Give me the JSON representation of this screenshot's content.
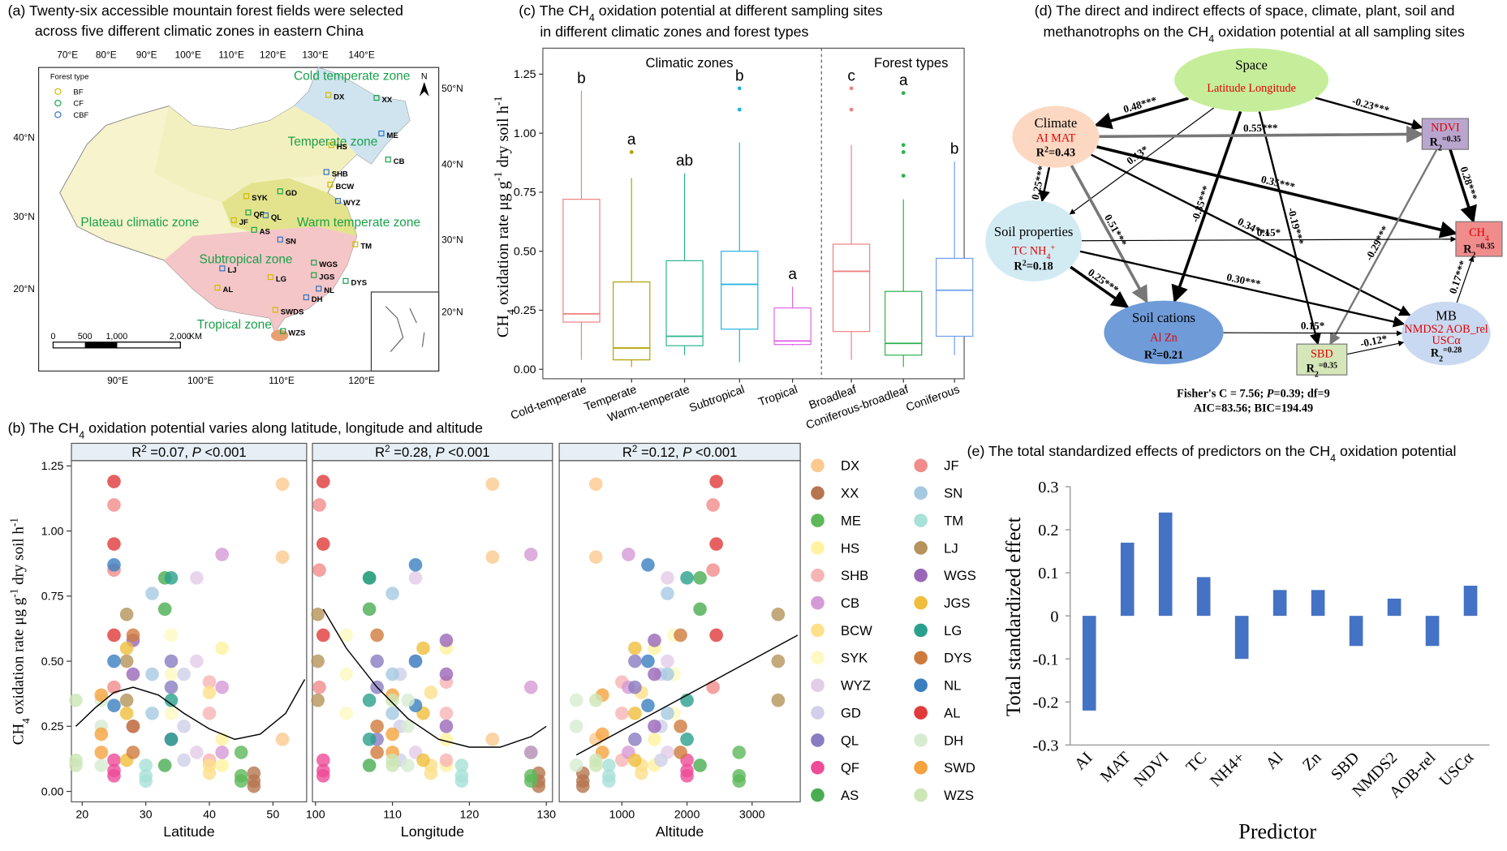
{
  "map": {
    "title": [
      "(a) Twenty-six accessible mountain forest fields were selected",
      "across five different climatic zones in eastern China"
    ],
    "lon_top": [
      "70°E",
      "80°E",
      "90°E",
      "100°E",
      "110°E",
      "120°E",
      "130°E",
      "140°E"
    ],
    "lon_bottom": [
      "90°E",
      "100°E",
      "110°E",
      "120°E"
    ],
    "lat_left": [
      "40°N",
      "30°N",
      "20°N"
    ],
    "lat_right": [
      "50°N",
      "40°N",
      "30°N",
      "20°N"
    ],
    "zones": [
      "Cold temperate zone",
      "Temperate zone",
      "Warm temperate zone",
      "Plateau climatic zone",
      "Subtropical zone",
      "Tropical zone"
    ],
    "sites": [
      "DX",
      "XX",
      "ME",
      "HS",
      "CB",
      "SHB",
      "BCW",
      "GD",
      "WYZ",
      "SYK",
      "QF",
      "QL",
      "JF",
      "AS",
      "SN",
      "TM",
      "WGS",
      "LJ",
      "LG",
      "JGS",
      "NL",
      "AL",
      "DYS",
      "DH",
      "SWDS",
      "WZS"
    ],
    "legend": {
      "title": "Forest type",
      "items": [
        "BF",
        "CF",
        "CBF"
      ]
    },
    "scale": [
      "0",
      "500",
      "1,000",
      "2,000",
      "KM"
    ],
    "north": "N"
  },
  "path_diagram": {
    "title": [
      "(d) The direct and indirect effects of space, climate, plant, soil and",
      "methanotrophs on the CH",
      "4",
      " oxidation potential at all sampling sites"
    ],
    "nodes": [
      {
        "lines": [
          [
            "Space"
          ],
          [
            "Latitude Longitude"
          ]
        ]
      },
      {
        "lines": [
          [
            "Climate"
          ],
          [
            "AI  MAT"
          ],
          [
            "R",
            "2",
            "=0.43"
          ]
        ]
      },
      {
        "lines": [
          [
            "NDVI"
          ],
          [
            "R",
            "2",
            "=0.35"
          ]
        ]
      },
      {
        "lines": [
          [
            "Soil properties"
          ],
          [
            "TC NH",
            "4",
            "+"
          ],
          [
            "R",
            "2",
            "=0.18"
          ]
        ]
      },
      {
        "lines": [
          [
            "CH",
            "4"
          ],
          [
            "R",
            "2",
            "=0.35"
          ]
        ]
      },
      {
        "lines": [
          [
            "Soil cations"
          ],
          [
            "Al   Zn"
          ],
          [
            "R",
            "2",
            "=0.21"
          ]
        ]
      },
      {
        "lines": [
          [
            "SBD"
          ],
          [
            "R",
            "2",
            "=0.35"
          ]
        ]
      },
      {
        "lines": [
          [
            "MB"
          ],
          [
            "NMDS2   AOB_rel"
          ],
          [
            "USCα"
          ],
          [
            "R",
            "2",
            "=0.28"
          ]
        ]
      }
    ],
    "edges": [
      "0.48***",
      "-0.23***",
      "-0.35***",
      "-0.19***",
      "0.13*",
      "0.55***",
      "0.25***",
      "0.51***",
      "0.35***",
      "0.34***",
      "0.28***",
      "-0.29***",
      "0.15*",
      "0.25***",
      "0.30***",
      "0.15*",
      "-0.12*",
      "0.17***"
    ],
    "fit": [
      [
        "Fisher's C = 7.56; ",
        "P",
        "=0.39; df=9"
      ],
      [
        "AIC=83.56; BIC=194.49"
      ]
    ]
  },
  "chart_data": [
    {
      "type": "scatter",
      "title": [
        "(b) The CH",
        "4",
        " oxidation potential varies along latitude, longitude and altitude"
      ],
      "y_label": [
        "CH",
        "4",
        " oxidation rate μg g",
        "-1",
        " dry soil h",
        "-1"
      ],
      "ylim": [
        -0.04,
        1.27
      ],
      "yticks": [
        {
          "value": 0,
          "label": "0.00"
        },
        {
          "value": 0.25,
          "label": "0.25"
        },
        {
          "value": 0.5,
          "label": "0.50"
        },
        {
          "value": 0.75,
          "label": "0.75"
        },
        {
          "value": 1,
          "label": "1.00"
        },
        {
          "value": 1.25,
          "label": "1.25"
        }
      ],
      "facets": [
        {
          "strip": [
            "R",
            "2",
            " =0.07, ",
            "P",
            " <0.001"
          ],
          "x_label": "Latitude",
          "xlim": [
            18.3,
            55.3
          ],
          "xticks": [
            20,
            30,
            40,
            50
          ],
          "trend": {
            "x": [
              19,
              22,
              25,
              28,
              32,
              36,
              40,
              44,
              48,
              52,
              55
            ],
            "values": [
              0.25,
              0.32,
              0.38,
              0.4,
              0.37,
              0.3,
              0.24,
              0.2,
              0.22,
              0.3,
              0.43
            ]
          }
        },
        {
          "strip": [
            "R",
            "2",
            " =0.28, ",
            "P",
            " <0.001"
          ],
          "x_label": "Longitude",
          "xlim": [
            99.6,
            130.8
          ],
          "xticks": [
            100,
            110,
            120,
            130
          ],
          "trend": {
            "x": [
              101,
              104,
              108,
              112,
              116,
              120,
              124,
              128,
              130
            ],
            "values": [
              0.7,
              0.55,
              0.4,
              0.28,
              0.2,
              0.17,
              0.17,
              0.21,
              0.25
            ]
          }
        },
        {
          "strip": [
            "R",
            "2",
            " =0.12, ",
            "P",
            " <0.001"
          ],
          "x_label": "Altitude",
          "xlim": [
            37,
            3740
          ],
          "xticks": [
            1000,
            2000,
            3000
          ],
          "trend": {
            "x": [
              300,
              3700
            ],
            "values": [
              0.14,
              0.6
            ]
          }
        }
      ],
      "series": [
        {
          "name": "DX",
          "color": "#fbc98f",
          "site_x": [
            51.5,
            123,
            600
          ],
          "values": [
            1.18,
            0.9,
            0.2
          ]
        },
        {
          "name": "XX",
          "color": "#b5754f",
          "site_x": [
            47,
            129,
            400
          ],
          "values": [
            0.07,
            0.04,
            0.02
          ]
        },
        {
          "name": "ME",
          "color": "#5db85a",
          "site_x": [
            45,
            128,
            2800
          ],
          "values": [
            0.06,
            0.04,
            0.15
          ]
        },
        {
          "name": "HS",
          "color": "#fff3a0",
          "site_x": [
            42,
            117,
            1500
          ],
          "values": [
            0.55,
            0.2,
            0.1
          ]
        },
        {
          "name": "SHB",
          "color": "#f7b4b4",
          "site_x": [
            40,
            117,
            1000
          ],
          "values": [
            0.42,
            0.3,
            0.12
          ]
        },
        {
          "name": "CB",
          "color": "#d49ad6",
          "site_x": [
            42,
            128,
            1100
          ],
          "values": [
            0.91,
            0.4,
            0.15
          ]
        },
        {
          "name": "BCW",
          "color": "#fde08a",
          "site_x": [
            40,
            115,
            1300
          ],
          "values": [
            0.38,
            0.1,
            0.07
          ]
        },
        {
          "name": "SYK",
          "color": "#fdf9c2",
          "site_x": [
            34,
            104,
            1800
          ],
          "values": [
            0.6,
            0.45,
            0.3
          ]
        },
        {
          "name": "WYZ",
          "color": "#e3cce8",
          "site_x": [
            38,
            113,
            1700
          ],
          "values": [
            0.82,
            0.5,
            0.15
          ]
        },
        {
          "name": "GD",
          "color": "#d0d0ea",
          "site_x": [
            36,
            111,
            1600
          ],
          "values": [
            0.45,
            0.25,
            0.12
          ]
        },
        {
          "name": "QL",
          "color": "#8a7cc0",
          "site_x": [
            34,
            108,
            1200
          ],
          "values": [
            0.5,
            0.4,
            0.2
          ]
        },
        {
          "name": "QF",
          "color": "#ee4b98",
          "site_x": [
            25,
            101,
            2000
          ],
          "values": [
            0.12,
            0.08,
            0.06
          ]
        },
        {
          "name": "AS",
          "color": "#4aad52",
          "site_x": [
            33,
            107,
            2200
          ],
          "values": [
            0.82,
            0.7,
            0.1
          ]
        },
        {
          "name": "JF",
          "color": "#f28b8b",
          "site_x": [
            25,
            100.5,
            2400
          ],
          "values": [
            1.1,
            0.85,
            0.4
          ]
        },
        {
          "name": "SN",
          "color": "#a6c9e2",
          "site_x": [
            31,
            110,
            1700
          ],
          "values": [
            0.76,
            0.45,
            0.3
          ]
        },
        {
          "name": "TM",
          "color": "#a7e1d8",
          "site_x": [
            30,
            119,
            800
          ],
          "values": [
            0.1,
            0.06,
            0.04
          ]
        },
        {
          "name": "LJ",
          "color": "#b5935a",
          "site_x": [
            27,
            100.3,
            3400
          ],
          "values": [
            0.68,
            0.5,
            0.35
          ]
        },
        {
          "name": "WGS",
          "color": "#9a67b8",
          "site_x": [
            28,
            117,
            1500
          ],
          "values": [
            0.58,
            0.45,
            0.25
          ]
        },
        {
          "name": "JGS",
          "color": "#efbe3c",
          "site_x": [
            27,
            114,
            1200
          ],
          "values": [
            0.55,
            0.3,
            0.12
          ]
        },
        {
          "name": "LG",
          "color": "#2aa08c",
          "site_x": [
            34,
            107,
            2000
          ],
          "values": [
            0.82,
            0.35,
            0.2
          ]
        },
        {
          "name": "DYS",
          "color": "#cf7a3d",
          "site_x": [
            28,
            108,
            1900
          ],
          "values": [
            0.6,
            0.25,
            0.15
          ]
        },
        {
          "name": "NL",
          "color": "#3a7fc0",
          "site_x": [
            25,
            113,
            1400
          ],
          "values": [
            0.87,
            0.5,
            0.33
          ]
        },
        {
          "name": "AL",
          "color": "#e03a3a",
          "site_x": [
            25,
            101,
            2450
          ],
          "values": [
            1.19,
            0.95,
            0.6
          ]
        },
        {
          "name": "DH",
          "color": "#d6ecd0",
          "site_x": [
            23,
            112,
            300
          ],
          "values": [
            0.35,
            0.25,
            0.1
          ]
        },
        {
          "name": "SWD",
          "color": "#f6a23f",
          "site_x": [
            23,
            110,
            700
          ],
          "values": [
            0.37,
            0.22,
            0.15
          ]
        },
        {
          "name": "WZS",
          "color": "#cce6b5",
          "site_x": [
            19,
            110,
            600
          ],
          "values": [
            0.35,
            0.12,
            0.1
          ]
        }
      ]
    },
    {
      "type": "box",
      "title": [
        [
          "(c) The CH",
          "4",
          " oxidation potential at different sampling sites"
        ],
        [
          "in different climatic zones and forest types"
        ]
      ],
      "y_label": [
        "CH",
        "4",
        " oxidation rate μg g",
        "-1",
        " dry soil h",
        "-1"
      ],
      "groups": [
        "Climatic zones",
        "Forest types"
      ],
      "ylim": [
        -0.04,
        1.36
      ],
      "yticks": [
        {
          "value": 0,
          "label": "0.00"
        },
        {
          "value": 0.25,
          "label": "0.25"
        },
        {
          "value": 0.5,
          "label": "0.50"
        },
        {
          "value": 0.75,
          "label": "0.75"
        },
        {
          "value": 1,
          "label": "1.00"
        },
        {
          "value": 1.25,
          "label": "1.25"
        }
      ],
      "categories": [
        "Cold-temperate",
        "Temperate",
        "Warm-temperate",
        "Subtropical",
        "Tropical",
        "Broadleaf",
        "Coniferous-broadleaf",
        "Coniferous"
      ],
      "colors": [
        "#f08080",
        "#b5a000",
        "#2ab58e",
        "#1fb0e0",
        "#e066e8",
        "#f08080",
        "#2bb04a",
        "#6e9ef0"
      ],
      "min": [
        0.04,
        0.01,
        0.06,
        0.03,
        0.1,
        0.04,
        0.01,
        0.06
      ],
      "q1": [
        0.2,
        0.04,
        0.1,
        0.17,
        0.105,
        0.16,
        0.06,
        0.14
      ],
      "median": [
        0.235,
        0.09,
        0.14,
        0.36,
        0.12,
        0.415,
        0.11,
        0.335
      ],
      "q3": [
        0.72,
        0.37,
        0.46,
        0.5,
        0.26,
        0.53,
        0.33,
        0.47
      ],
      "max": [
        1.18,
        0.81,
        0.83,
        0.96,
        0.35,
        0.95,
        0.72,
        0.88
      ],
      "outliers": [
        [],
        [
          0.92
        ],
        [],
        [
          1.1,
          1.19
        ],
        [],
        [
          1.1,
          1.19
        ],
        [
          0.82,
          0.92,
          0.95,
          1.17
        ],
        []
      ],
      "letters": [
        "b",
        "a",
        "ab",
        "b",
        "a",
        "c",
        "a",
        "b"
      ]
    },
    {
      "type": "bar",
      "title": [
        "(e) The total standardized effects of predictors on the CH",
        "4",
        " oxidation potential"
      ],
      "x_label": "Predictor",
      "y_label": "Total standardized effect",
      "categories": [
        "AI",
        "MAT",
        "NDVI",
        "TC",
        "NH4+",
        "Al",
        "Zn",
        "SBD",
        "NMDS2",
        "AOB-rel",
        "USCα"
      ],
      "values": [
        -0.22,
        0.17,
        0.24,
        0.09,
        -0.1,
        0.06,
        0.06,
        -0.07,
        0.04,
        -0.07,
        0.07
      ],
      "color": "#4472c4",
      "ylim": [
        -0.3,
        0.3
      ],
      "yticks": [
        -0.3,
        -0.2,
        -0.1,
        0,
        0.1,
        0.2,
        0.3
      ]
    }
  ]
}
